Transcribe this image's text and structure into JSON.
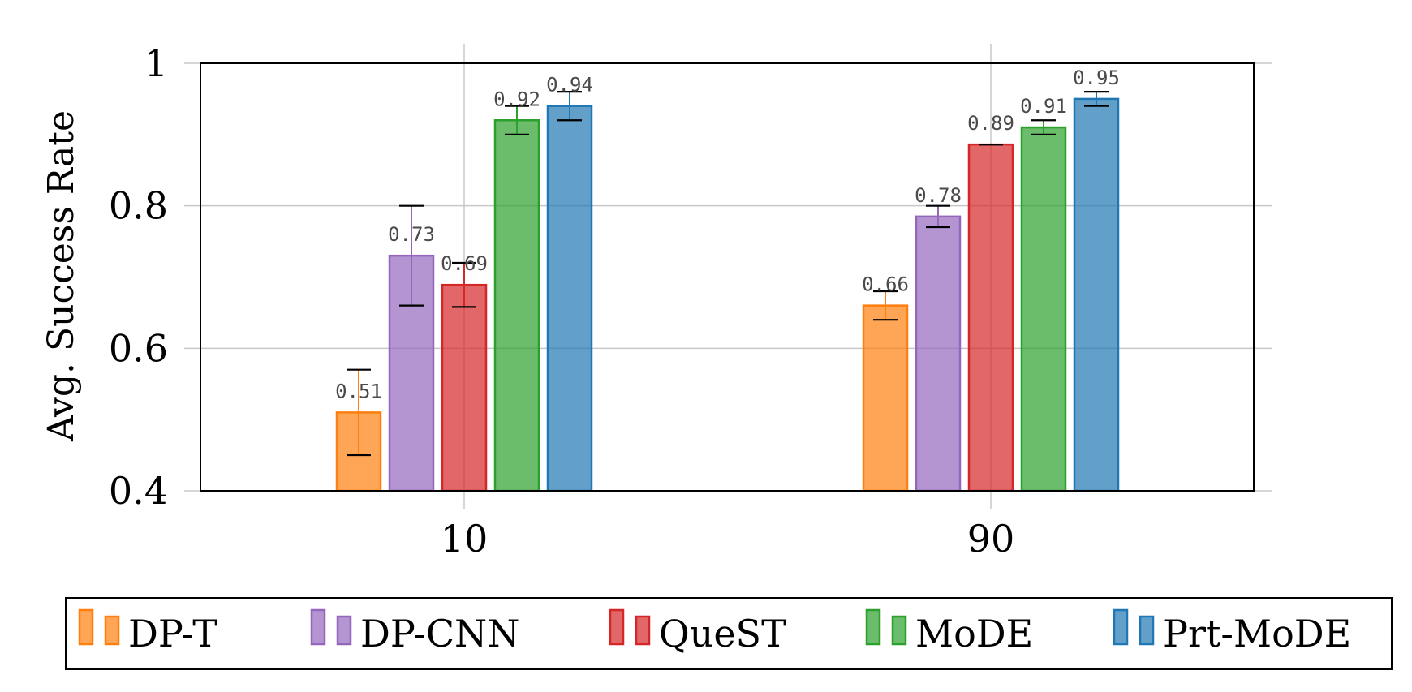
{
  "chart_data": {
    "type": "bar",
    "categories": [
      "10",
      "90"
    ],
    "ylabel": "Avg. Success Rate",
    "xlabel": "",
    "ylim": [
      0.4,
      1.0
    ],
    "yticks": [
      "0.4",
      "0.6",
      "0.8",
      "1"
    ],
    "grid": true,
    "legend_position": "bottom",
    "series": [
      {
        "name": "DP-T",
        "color": "#ff7f0e",
        "values": [
          0.51,
          0.66
        ],
        "labels": [
          "0.51",
          "0.66"
        ],
        "err_low": [
          0.45,
          0.64
        ],
        "err_high": [
          0.57,
          0.68
        ]
      },
      {
        "name": "DP-CNN",
        "color": "#9467bd",
        "values": [
          0.73,
          0.785
        ],
        "labels": [
          "0.73",
          "0.78"
        ],
        "err_low": [
          0.66,
          0.77
        ],
        "err_high": [
          0.8,
          0.8
        ]
      },
      {
        "name": "QueST",
        "color": "#d62728",
        "values": [
          0.689,
          0.886
        ],
        "labels": [
          "0.69",
          "0.89"
        ],
        "err_low": [
          0.658,
          0.886
        ],
        "err_high": [
          0.72,
          0.886
        ]
      },
      {
        "name": "MoDE",
        "color": "#2ca02c",
        "values": [
          0.92,
          0.91
        ],
        "labels": [
          "0.92",
          "0.91"
        ],
        "err_low": [
          0.9,
          0.9
        ],
        "err_high": [
          0.94,
          0.92
        ]
      },
      {
        "name": "Prt-MoDE",
        "color": "#1f77b4",
        "values": [
          0.94,
          0.95
        ],
        "labels": [
          "0.94",
          "0.95"
        ],
        "err_low": [
          0.92,
          0.94
        ],
        "err_high": [
          0.96,
          0.96
        ]
      }
    ]
  }
}
